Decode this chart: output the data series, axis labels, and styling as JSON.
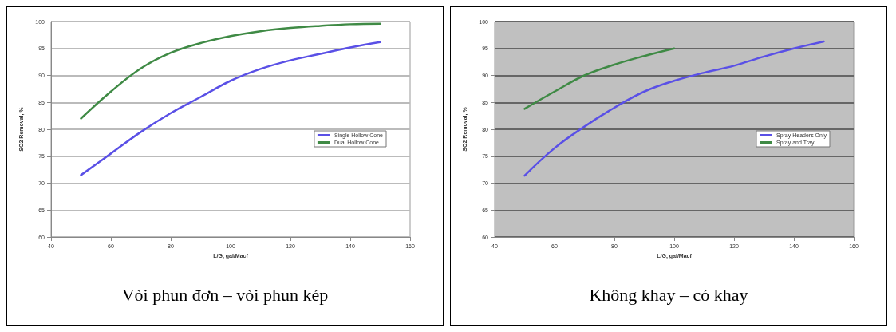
{
  "chart_data": [
    {
      "type": "line",
      "title": "Vòi phun đơn – vòi phun kép",
      "xlabel": "L/G, gal/Macf",
      "ylabel": "SO2 Removal, %",
      "xlim": [
        40,
        160
      ],
      "xticks": [
        40,
        60,
        80,
        100,
        120,
        140,
        160
      ],
      "ylim": [
        60,
        100
      ],
      "yticks": [
        60,
        65,
        70,
        75,
        80,
        85,
        90,
        95,
        100
      ],
      "grid": "y",
      "legend": "right",
      "marker": "none",
      "line_style": "solid",
      "x": [
        50,
        60,
        70,
        80,
        90,
        100,
        110,
        120,
        130,
        140,
        150
      ],
      "series": [
        {
          "name": "Single Hollow Cone",
          "color": "#5a50e6",
          "values": [
            71.5,
            75.5,
            79.5,
            83,
            86,
            89,
            91.2,
            92.8,
            94,
            95.2,
            96.2
          ]
        },
        {
          "name": "Dual Hollow Cone",
          "color": "#3f8a45",
          "values": [
            82,
            87,
            91.3,
            94.2,
            96,
            97.3,
            98.2,
            98.8,
            99.2,
            99.5,
            99.6
          ]
        }
      ]
    },
    {
      "type": "line",
      "title": "Không khay – có khay",
      "xlabel": "L/G, gal/Macf",
      "ylabel": "SO2 Removal, %",
      "xlim": [
        40,
        160
      ],
      "xticks": [
        40,
        60,
        80,
        100,
        120,
        140,
        160
      ],
      "ylim": [
        60,
        100
      ],
      "yticks": [
        60,
        65,
        70,
        75,
        80,
        85,
        90,
        95,
        100
      ],
      "grid": "y",
      "legend": "right",
      "marker": "none",
      "line_style": "solid",
      "x": [
        50,
        60,
        70,
        80,
        90,
        100,
        110,
        120,
        130,
        140,
        150
      ],
      "series": [
        {
          "name": "Spray Headers Only",
          "color": "#5a50e6",
          "values": [
            71.4,
            76.5,
            80.5,
            84,
            87,
            89,
            90.5,
            91.8,
            93.5,
            95,
            96.3
          ]
        },
        {
          "name": "Spray and Tray",
          "color": "#3f8a45",
          "x": [
            50,
            60,
            70,
            80,
            90,
            100
          ],
          "values": [
            83.8,
            87,
            90,
            92,
            93.6,
            95
          ]
        }
      ]
    }
  ]
}
